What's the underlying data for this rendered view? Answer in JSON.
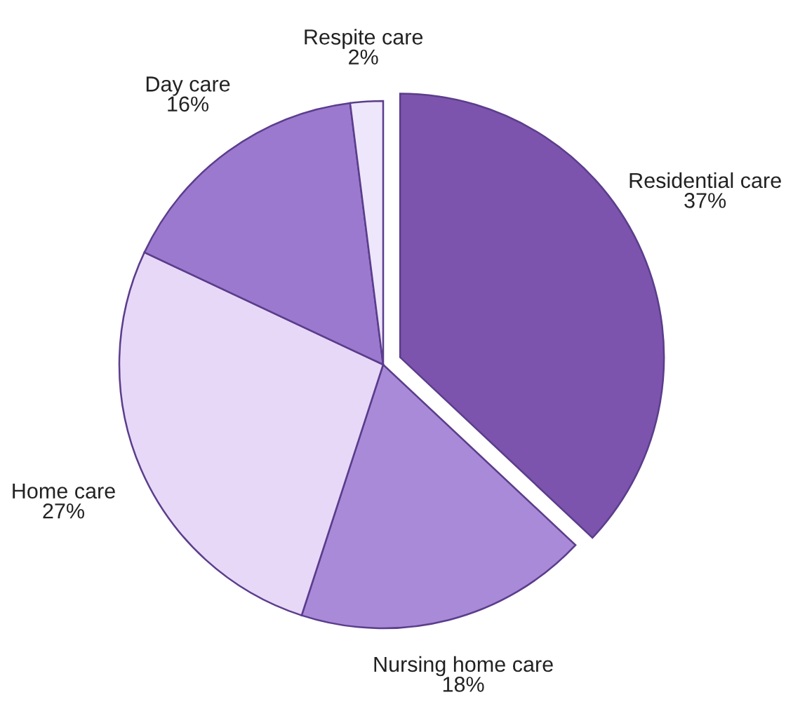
{
  "chart_data": {
    "type": "pie",
    "categories": [
      "Residential care",
      "Nursing home care",
      "Home care",
      "Day care",
      "Respite care"
    ],
    "values": [
      37,
      18,
      27,
      16,
      2
    ],
    "colors": [
      "#7c54ad",
      "#a88ad8",
      "#e7d8f8",
      "#9b79cf",
      "#eee6fa"
    ],
    "value_labels": [
      "37%",
      "18%",
      "27%",
      "16%",
      "2%"
    ]
  }
}
